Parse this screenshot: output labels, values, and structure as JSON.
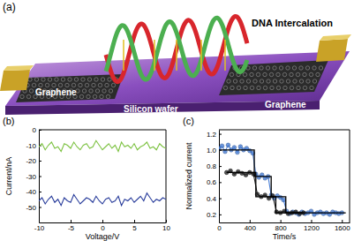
{
  "illustration": {
    "panel_label": "(a)",
    "title": "DNA Intercalation",
    "labels": [
      "Graphene",
      "Graphene",
      "Silicon wafer"
    ]
  },
  "chart_data": [
    {
      "type": "line",
      "title": "(b)",
      "x_label": "Voltage/V",
      "y_label": "Current/nA",
      "xlim": [
        -10,
        10
      ],
      "xticks": [
        -10,
        -5,
        0,
        5,
        10
      ],
      "ylim": [
        -60,
        0
      ],
      "yticks": [
        -50,
        -40,
        -30,
        -20,
        -10,
        0
      ],
      "x": [
        -10,
        -9.5,
        -9,
        -8.5,
        -8,
        -7.5,
        -7,
        -6.5,
        -6,
        -5.5,
        -5,
        -4.5,
        -4,
        -3.5,
        -3,
        -2.5,
        -2,
        -1.5,
        -1,
        -0.5,
        0,
        0.5,
        1,
        1.5,
        2,
        2.5,
        3,
        3.5,
        4,
        4.5,
        5,
        5.5,
        6,
        6.5,
        7,
        7.5,
        8,
        8.5,
        9,
        9.5,
        10
      ],
      "series": [
        {
          "color": "#7dc242",
          "marker": "none",
          "line_style": "solid",
          "values": [
            -11,
            -9,
            -13,
            -10,
            -8,
            -12,
            -11,
            -14,
            -9,
            -10,
            -12,
            -8,
            -11,
            -13,
            -10,
            -9,
            -12,
            -11,
            -7,
            -10,
            -13,
            -11,
            -9,
            -12,
            -10,
            -14,
            -8,
            -11,
            -10,
            -12,
            -9,
            -13,
            -11,
            -10,
            -8,
            -12,
            -11,
            -13,
            -9,
            -11,
            -12
          ]
        },
        {
          "color": "#2a3e9c",
          "marker": "none",
          "line_style": "solid",
          "values": [
            -46,
            -44,
            -48,
            -45,
            -43,
            -47,
            -45,
            -49,
            -44,
            -46,
            -47,
            -42,
            -45,
            -48,
            -46,
            -44,
            -45,
            -47,
            -43,
            -46,
            -48,
            -45,
            -44,
            -47,
            -46,
            -43,
            -49,
            -45,
            -46,
            -44,
            -47,
            -45,
            -43,
            -46,
            -41,
            -44,
            -47,
            -45,
            -46,
            -44,
            -45
          ]
        }
      ]
    },
    {
      "type": "line",
      "title": "(c)",
      "x_label": "Time/s",
      "y_label": "Normalized current",
      "xlim": [
        0,
        1700
      ],
      "xticks": [
        0,
        400,
        800,
        1200,
        1600
      ],
      "ylim": [
        0.1,
        1.25
      ],
      "yticks": [
        0.2,
        0.4,
        0.6,
        0.8,
        {
          "value": 1,
          "label": "1.0"
        },
        1.2
      ],
      "series": [
        {
          "color": "#4a7fd6",
          "marker": "circle",
          "line_style": "solid",
          "x": [
            0,
            40,
            80,
            120,
            160,
            200,
            240,
            280,
            320,
            360,
            400,
            440,
            480,
            520,
            560,
            600,
            640,
            680,
            720,
            760,
            800,
            840,
            880,
            920,
            960,
            1000,
            1040,
            1080,
            1120,
            1160,
            1200,
            1240,
            1280,
            1320,
            1360,
            1400,
            1440,
            1480,
            1520,
            1560,
            1600
          ],
          "values": [
            1.02,
            1.05,
            0.98,
            1.06,
            1.0,
            1.03,
            0.97,
            1.04,
            1.0,
            1.02,
            0.99,
            0.96,
            0.7,
            0.66,
            0.69,
            0.65,
            0.67,
            0.44,
            0.4,
            0.43,
            0.41,
            0.38,
            0.24,
            0.21,
            0.23,
            0.22,
            0.2,
            0.23,
            0.21,
            0.22,
            0.24,
            0.2,
            0.22,
            0.23,
            0.21,
            0.22,
            0.2,
            0.23,
            0.22,
            0.21,
            0.22
          ]
        },
        {
          "color": "#222222",
          "marker": "circle",
          "line_style": "solid",
          "x": [
            100,
            150,
            200,
            250,
            300,
            350,
            400,
            450,
            500,
            550,
            600,
            650,
            700,
            750,
            800,
            850,
            900,
            950,
            1000,
            1050,
            1100
          ],
          "values": [
            0.72,
            0.74,
            0.7,
            0.73,
            0.71,
            0.69,
            0.72,
            0.7,
            0.45,
            0.42,
            0.44,
            0.4,
            0.43,
            0.23,
            0.22,
            0.24,
            0.21,
            0.22,
            0.23,
            0.21,
            0.22
          ]
        },
        {
          "type": "step",
          "color": "#000000",
          "marker": "none",
          "line_style": "solid",
          "x": [
            0,
            460,
            680,
            870,
            1650
          ],
          "values": [
            1.0,
            0.67,
            0.42,
            0.22,
            0.22
          ]
        },
        {
          "type": "step",
          "color": "#000000",
          "marker": "none",
          "line_style": "solid",
          "x": [
            100,
            480,
            740,
            1100
          ],
          "values": [
            0.72,
            0.42,
            0.22,
            0.22
          ]
        }
      ]
    }
  ]
}
